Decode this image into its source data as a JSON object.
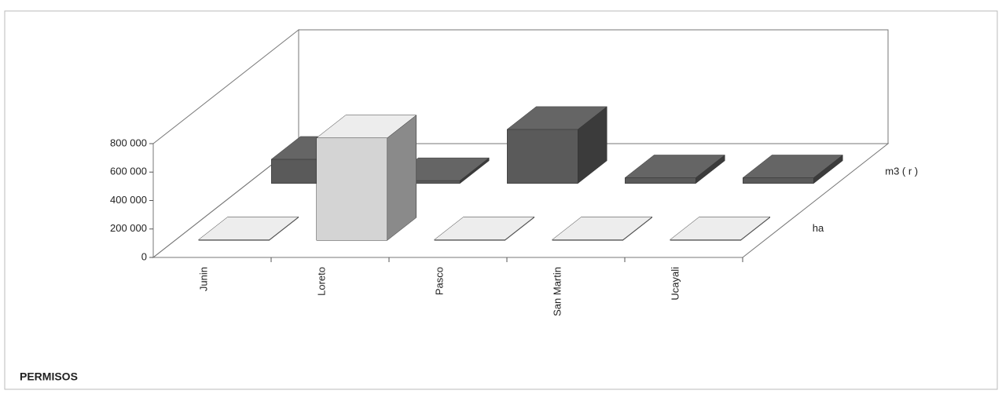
{
  "chart_data": {
    "type": "bar3d",
    "title": "PERMISOS",
    "categories": [
      "Junin",
      "Loreto",
      "Pasco",
      "San Martin",
      "Ucayali"
    ],
    "series": [
      {
        "name": "ha",
        "color": "#d4d4d4",
        "values": [
          5000,
          720000,
          5000,
          5000,
          5000
        ]
      },
      {
        "name": "m3 ( r )",
        "color": "#5a5a5a",
        "values": [
          170000,
          20000,
          380000,
          40000,
          40000
        ]
      }
    ],
    "ylim": [
      0,
      800000
    ],
    "yticks": [
      0,
      {
        "value": 200000,
        "label": "200 000"
      },
      {
        "value": 400000,
        "label": "400 000"
      },
      {
        "value": 600000,
        "label": "600 000"
      },
      {
        "value": 800000,
        "label": "800 000"
      }
    ]
  }
}
